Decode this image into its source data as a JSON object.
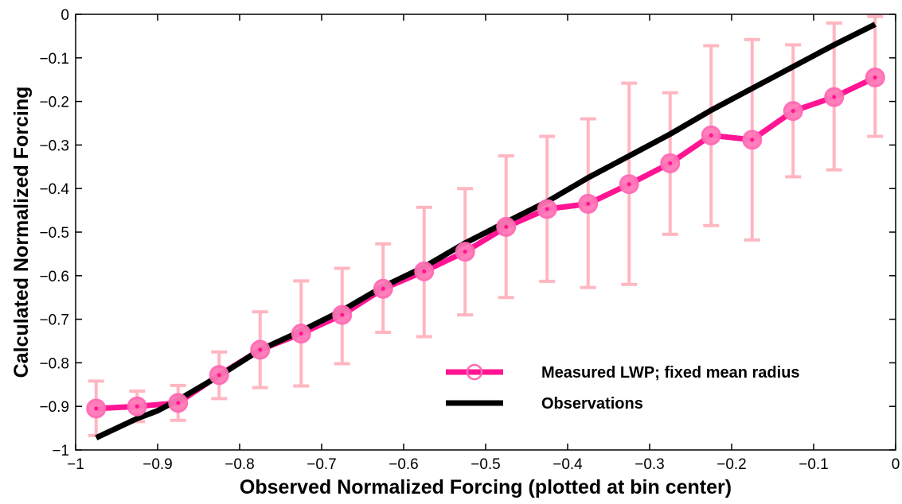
{
  "chart_data": {
    "type": "line",
    "title": "",
    "xlabel": "Observed Normalized Forcing (plotted at bin center)",
    "ylabel": "Calculated Normalized Forcing",
    "xlim": [
      -1,
      0
    ],
    "ylim": [
      -1,
      0
    ],
    "xticks": [
      -1,
      -0.9,
      -0.8,
      -0.7,
      -0.6,
      -0.5,
      -0.4,
      -0.3,
      -0.2,
      -0.1,
      0
    ],
    "xtick_labels": [
      "−1",
      "−0.9",
      "−0.8",
      "−0.7",
      "−0.6",
      "−0.5",
      "−0.4",
      "−0.3",
      "−0.2",
      "−0.1",
      "0"
    ],
    "yticks": [
      0,
      -0.1,
      -0.2,
      -0.3,
      -0.4,
      -0.5,
      -0.6,
      -0.7,
      -0.8,
      -0.9,
      -1
    ],
    "ytick_labels": [
      "0",
      "−0.1",
      "−0.2",
      "−0.3",
      "−0.4",
      "−0.5",
      "−0.6",
      "−0.7",
      "−0.8",
      "−0.9",
      "−1"
    ],
    "grid": false,
    "legend_position": "bottom-right",
    "series": [
      {
        "name": "Measured LWP; fixed mean radius",
        "color": "#ff1493",
        "errorbar_color": "#ffb6c1",
        "marker": "circle",
        "x": [
          -0.975,
          -0.925,
          -0.875,
          -0.825,
          -0.775,
          -0.725,
          -0.675,
          -0.625,
          -0.575,
          -0.525,
          -0.475,
          -0.425,
          -0.375,
          -0.325,
          -0.275,
          -0.225,
          -0.175,
          -0.125,
          -0.075,
          -0.025
        ],
        "y": [
          -0.905,
          -0.9,
          -0.892,
          -0.828,
          -0.77,
          -0.733,
          -0.69,
          -0.63,
          -0.59,
          -0.545,
          -0.488,
          -0.447,
          -0.435,
          -0.39,
          -0.342,
          -0.278,
          -0.288,
          -0.222,
          -0.19,
          -0.145
        ],
        "err_low": [
          -0.967,
          -0.935,
          -0.932,
          -0.882,
          -0.857,
          -0.853,
          -0.802,
          -0.73,
          -0.74,
          -0.69,
          -0.65,
          -0.613,
          -0.627,
          -0.62,
          -0.505,
          -0.485,
          -0.518,
          -0.373,
          -0.357,
          -0.28
        ],
        "err_high": [
          -0.842,
          -0.865,
          -0.852,
          -0.775,
          -0.683,
          -0.612,
          -0.583,
          -0.527,
          -0.443,
          -0.4,
          -0.325,
          -0.28,
          -0.24,
          -0.158,
          -0.18,
          -0.072,
          -0.058,
          -0.07,
          -0.02,
          -0.005
        ]
      },
      {
        "name": "Observations",
        "color": "#000000",
        "x": [
          -0.975,
          -0.925,
          -0.9,
          -0.875,
          -0.825,
          -0.775,
          -0.725,
          -0.675,
          -0.625,
          -0.575,
          -0.525,
          -0.475,
          -0.425,
          -0.375,
          -0.325,
          -0.275,
          -0.225,
          -0.175,
          -0.125,
          -0.075,
          -0.025
        ],
        "y": [
          -0.972,
          -0.928,
          -0.91,
          -0.885,
          -0.83,
          -0.77,
          -0.727,
          -0.68,
          -0.625,
          -0.58,
          -0.525,
          -0.477,
          -0.43,
          -0.375,
          -0.325,
          -0.275,
          -0.22,
          -0.17,
          -0.12,
          -0.07,
          -0.023
        ]
      }
    ]
  }
}
